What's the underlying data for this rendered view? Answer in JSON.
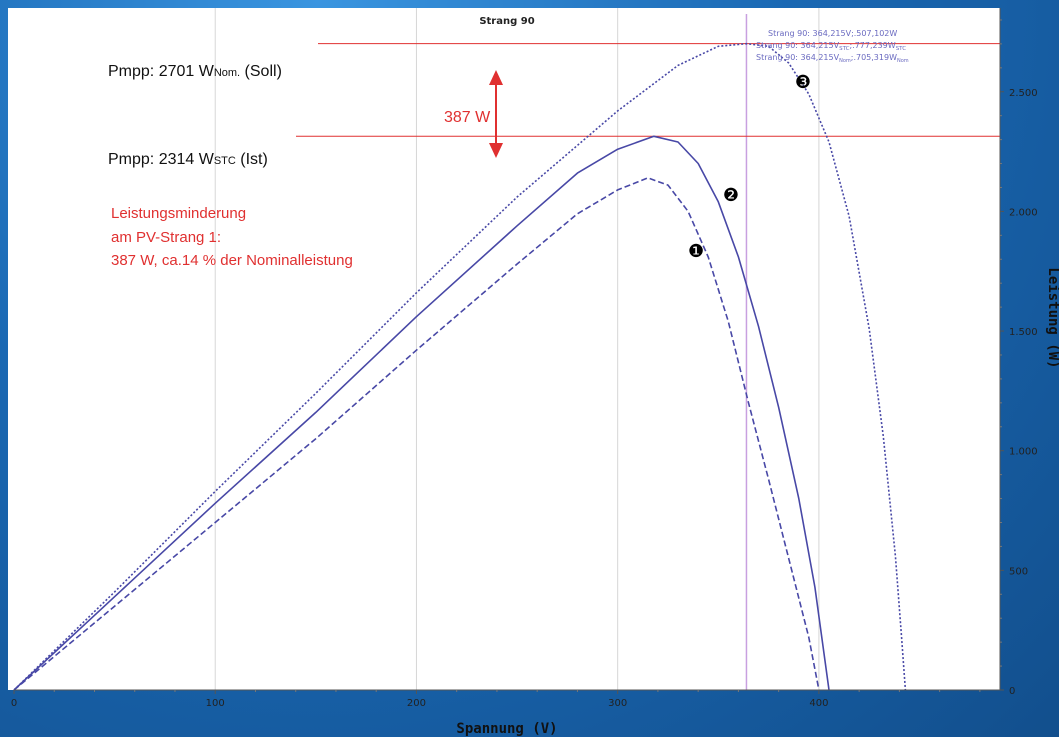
{
  "colors": {
    "frame": "#1d6fb8",
    "plot_bg": "#ffffff",
    "curve": "#4848a6",
    "annotation_red": "#e03030",
    "cursor_line": "#c8a0e0",
    "cursor_text": "#6a6ac0"
  },
  "chart_data": {
    "type": "line",
    "title": "Strang 90",
    "xlabel": "Spannung (V)",
    "ylabel": "Leistung (W)",
    "xlim": [
      0,
      490
    ],
    "ylim": [
      0,
      2850
    ],
    "x_ticks": [
      {
        "value": 0,
        "label": "0"
      },
      {
        "value": 100,
        "label": "100"
      },
      {
        "value": 200,
        "label": "200"
      },
      {
        "value": 300,
        "label": "300"
      },
      {
        "value": 400,
        "label": "400"
      }
    ],
    "y_ticks": [
      {
        "value": 0,
        "label": "0"
      },
      {
        "value": 500,
        "label": "500"
      },
      {
        "value": 1000,
        "label": "1.000"
      },
      {
        "value": 1500,
        "label": "1.500"
      },
      {
        "value": 2000,
        "label": "2.000"
      },
      {
        "value": 2500,
        "label": "2.500"
      }
    ],
    "grid": "vertical",
    "series": [
      {
        "marker": "❶",
        "dash": "6 3",
        "points": [
          [
            0,
            0
          ],
          [
            50,
            350
          ],
          [
            100,
            700
          ],
          [
            150,
            1050
          ],
          [
            200,
            1420
          ],
          [
            250,
            1780
          ],
          [
            280,
            1990
          ],
          [
            300,
            2090
          ],
          [
            315,
            2140
          ],
          [
            325,
            2110
          ],
          [
            335,
            2000
          ],
          [
            345,
            1810
          ],
          [
            355,
            1540
          ],
          [
            365,
            1200
          ],
          [
            375,
            880
          ],
          [
            385,
            550
          ],
          [
            395,
            220
          ],
          [
            400,
            0
          ]
        ]
      },
      {
        "marker": "❷",
        "dash": "",
        "points": [
          [
            0,
            0
          ],
          [
            50,
            390
          ],
          [
            100,
            780
          ],
          [
            150,
            1160
          ],
          [
            200,
            1560
          ],
          [
            250,
            1940
          ],
          [
            280,
            2160
          ],
          [
            300,
            2260
          ],
          [
            318,
            2314
          ],
          [
            330,
            2290
          ],
          [
            340,
            2200
          ],
          [
            350,
            2040
          ],
          [
            360,
            1810
          ],
          [
            370,
            1520
          ],
          [
            380,
            1180
          ],
          [
            390,
            800
          ],
          [
            398,
            430
          ],
          [
            405,
            0
          ]
        ]
      },
      {
        "marker": "❸",
        "dash": "2 2",
        "points": [
          [
            0,
            0
          ],
          [
            50,
            410
          ],
          [
            100,
            830
          ],
          [
            150,
            1240
          ],
          [
            200,
            1660
          ],
          [
            250,
            2060
          ],
          [
            300,
            2420
          ],
          [
            330,
            2610
          ],
          [
            350,
            2690
          ],
          [
            364,
            2701
          ],
          [
            375,
            2690
          ],
          [
            385,
            2620
          ],
          [
            395,
            2490
          ],
          [
            405,
            2290
          ],
          [
            415,
            1980
          ],
          [
            425,
            1510
          ],
          [
            432,
            1060
          ],
          [
            438,
            560
          ],
          [
            441,
            230
          ],
          [
            443,
            0
          ]
        ]
      }
    ],
    "cursor": {
      "x": 364,
      "lines": [
        "Strang 90: 364,215V;.507,102W",
        "Strang 90: 364,215V",
        "Strang 90: 364,215V"
      ],
      "line2_suffix": "STC",
      "line2_value": ";.777,239W",
      "line2_suffix2": "STC",
      "line3_suffix": "Nom",
      "line3_value": ";.705,319W",
      "line3_suffix2": "Nom"
    },
    "annotations": {
      "pmpp_soll_main": "Pmpp: 2701 W",
      "pmpp_soll_sub": "Nom.",
      "pmpp_soll_tail": " (Soll)",
      "pmpp_soll_value": 2701,
      "pmpp_ist_main": "Pmpp: 2314 W",
      "pmpp_ist_sub": "STC",
      "pmpp_ist_tail": " (Ist)",
      "pmpp_ist_value": 2314,
      "delta_label": "387 W",
      "note_line1": "Leistungsminderung",
      "note_line2": "am PV-Strang 1:",
      "note_line3": "387 W, ca.14 % der Nominalleistung"
    }
  }
}
